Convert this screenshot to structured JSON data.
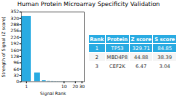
{
  "chart_data": {
    "type": "bar",
    "title": "Human Protein Microarray Specificity Validation",
    "xlabel": "Signal Rank",
    "ylabel": "Strength of Signal (Z score)",
    "x": [
      1,
      2,
      3,
      4,
      5,
      6,
      7,
      8,
      9,
      10,
      11,
      12,
      13,
      14,
      15,
      16,
      17,
      18,
      19,
      20,
      21,
      22,
      23,
      24,
      25,
      26,
      27,
      28,
      29,
      30
    ],
    "values": [
      329.71,
      44.88,
      6.47,
      3.0,
      2.5,
      2.0,
      1.8,
      1.5,
      1.3,
      1.1,
      1.0,
      0.9,
      0.85,
      0.8,
      0.75,
      0.7,
      0.65,
      0.6,
      0.55,
      0.5,
      0.45,
      0.42,
      0.4,
      0.38,
      0.36,
      0.34,
      0.32,
      0.3,
      0.28,
      0.25
    ],
    "color": "#29abe2",
    "log": "x",
    "xlim": [
      0.75,
      35
    ],
    "xticks": [
      1,
      10,
      20,
      30
    ],
    "ylim": [
      0,
      352
    ],
    "yticks": [
      0,
      32,
      64,
      96,
      128,
      160,
      192,
      224,
      256,
      288,
      320,
      352
    ],
    "grid": false,
    "table": [
      [
        "Rank",
        "Protein",
        "Z score",
        "S score"
      ],
      [
        "1",
        "TP53",
        "329.71",
        "84.85"
      ],
      [
        "2",
        "MBD4P8",
        "44.88",
        "38.39"
      ],
      [
        "3",
        "CEF2K",
        "6.47",
        "3.04"
      ]
    ]
  }
}
